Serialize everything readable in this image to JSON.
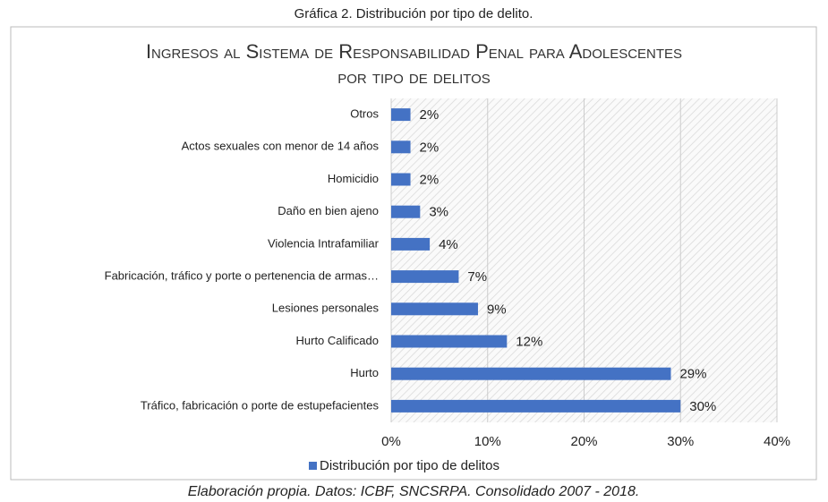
{
  "caption": "Gráfica 2. Distribución por tipo de delito.",
  "source": "Elaboración propia. Datos: ICBF, SNCSRPA. Consolidado 2007 - 2018.",
  "chart_data": {
    "type": "barh",
    "title": "Ingresos al Sistema de Responsabilidad Penal para Adolescentes por tipo de delitos",
    "categories": [
      "Otros",
      "Actos sexuales con menor de 14 años",
      "Homicidio",
      "Daño en bien ajeno",
      "Violencia Intrafamiliar",
      "Fabricación, tráfico y porte o pertenencia de armas…",
      "Lesiones personales",
      "Hurto Calificado",
      "Hurto",
      "Tráfico, fabricación o porte de estupefacientes"
    ],
    "series": [
      {
        "name": "Distribución por tipo de delitos",
        "color": "#4472c4",
        "values": [
          2,
          2,
          2,
          3,
          4,
          7,
          9,
          12,
          29,
          30
        ],
        "value_labels": [
          "2%",
          "2%",
          "2%",
          "3%",
          "4%",
          "7%",
          "9%",
          "12%",
          "29%",
          "30%"
        ]
      }
    ],
    "xlim": [
      0,
      40
    ],
    "xticks": [
      {
        "value": 0,
        "label": "0%"
      },
      {
        "value": 10,
        "label": "10%"
      },
      {
        "value": 20,
        "label": "20%"
      },
      {
        "value": 30,
        "label": "30%"
      },
      {
        "value": 40,
        "label": "40%"
      }
    ],
    "grid": true,
    "legend": "bottom"
  }
}
